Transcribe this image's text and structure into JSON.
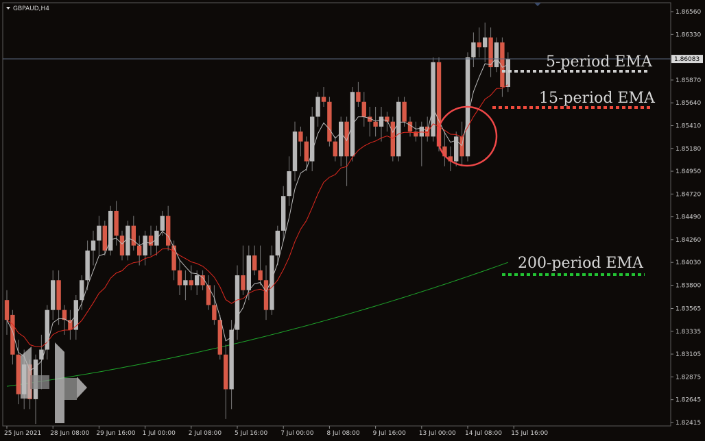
{
  "symbol": "GBPAUD,H4",
  "chart_data": {
    "type": "candlestick",
    "title": "GBPAUD,H4",
    "ylim": [
      1.8238,
      1.8665
    ],
    "y_ticks": [
      "1.86560",
      "1.86330",
      "1.85870",
      "1.85640",
      "1.85410",
      "1.85180",
      "1.84950",
      "1.84720",
      "1.84490",
      "1.84260",
      "1.84030",
      "1.83800",
      "1.83565",
      "1.83335",
      "1.83105",
      "1.82875",
      "1.82645",
      "1.82415"
    ],
    "y_tick_values": [
      1.8656,
      1.8633,
      1.8587,
      1.8564,
      1.8541,
      1.8518,
      1.8495,
      1.8472,
      1.8449,
      1.8426,
      1.8403,
      1.838,
      1.83565,
      1.83335,
      1.83105,
      1.82875,
      1.82645,
      1.82415
    ],
    "x_ticks": [
      "25 Jun 2021",
      "28 Jun 08:00",
      "29 Jun 16:00",
      "1 Jul 00:00",
      "2 Jul 08:00",
      "5 Jul 16:00",
      "7 Jul 00:00",
      "8 Jul 08:00",
      "9 Jul 16:00",
      "13 Jul 00:00",
      "14 Jul 08:00",
      "15 Jul 16:00"
    ],
    "x_tick_index": [
      0,
      8,
      16,
      24,
      32,
      40,
      48,
      56,
      64,
      72,
      80,
      88
    ],
    "current_price": "1.86083",
    "current_price_value": 1.86083,
    "ohlc": [
      [
        1.8365,
        1.8375,
        1.833,
        1.8345
      ],
      [
        1.835,
        1.8355,
        1.83,
        1.831
      ],
      [
        1.831,
        1.8325,
        1.826,
        1.827
      ],
      [
        1.827,
        1.8315,
        1.8255,
        1.83
      ],
      [
        1.83,
        1.8305,
        1.8255,
        1.8265
      ],
      [
        1.8265,
        1.831,
        1.824,
        1.8305
      ],
      [
        1.8305,
        1.833,
        1.8275,
        1.8315
      ],
      [
        1.8315,
        1.836,
        1.8305,
        1.8355
      ],
      [
        1.8355,
        1.8395,
        1.8345,
        1.8385
      ],
      [
        1.8385,
        1.8395,
        1.834,
        1.8355
      ],
      [
        1.8355,
        1.836,
        1.833,
        1.8345
      ],
      [
        1.8345,
        1.8355,
        1.8325,
        1.8335
      ],
      [
        1.8335,
        1.837,
        1.8325,
        1.8365
      ],
      [
        1.8365,
        1.839,
        1.8355,
        1.8385
      ],
      [
        1.8385,
        1.8425,
        1.8375,
        1.8415
      ],
      [
        1.8415,
        1.8435,
        1.84,
        1.8425
      ],
      [
        1.8425,
        1.845,
        1.841,
        1.844
      ],
      [
        1.844,
        1.8445,
        1.841,
        1.8415
      ],
      [
        1.8415,
        1.846,
        1.841,
        1.8455
      ],
      [
        1.8455,
        1.8465,
        1.842,
        1.843
      ],
      [
        1.843,
        1.8435,
        1.8405,
        1.841
      ],
      [
        1.841,
        1.8445,
        1.8405,
        1.844
      ],
      [
        1.844,
        1.845,
        1.8415,
        1.842
      ],
      [
        1.842,
        1.843,
        1.84,
        1.841
      ],
      [
        1.841,
        1.8435,
        1.84,
        1.843
      ],
      [
        1.843,
        1.844,
        1.841,
        1.842
      ],
      [
        1.842,
        1.844,
        1.841,
        1.8435
      ],
      [
        1.8435,
        1.8455,
        1.843,
        1.845
      ],
      [
        1.845,
        1.846,
        1.8415,
        1.842
      ],
      [
        1.842,
        1.8425,
        1.8385,
        1.8395
      ],
      [
        1.8395,
        1.8405,
        1.837,
        1.838
      ],
      [
        1.838,
        1.8395,
        1.8365,
        1.8385
      ],
      [
        1.8385,
        1.84,
        1.8375,
        1.838
      ],
      [
        1.838,
        1.8395,
        1.837,
        1.839
      ],
      [
        1.839,
        1.8395,
        1.8375,
        1.838
      ],
      [
        1.838,
        1.839,
        1.8355,
        1.836
      ],
      [
        1.836,
        1.838,
        1.834,
        1.8345
      ],
      [
        1.8345,
        1.835,
        1.8305,
        1.831
      ],
      [
        1.831,
        1.832,
        1.8245,
        1.8275
      ],
      [
        1.8275,
        1.8345,
        1.8255,
        1.8335
      ],
      [
        1.8335,
        1.84,
        1.8325,
        1.839
      ],
      [
        1.839,
        1.842,
        1.837,
        1.8375
      ],
      [
        1.8375,
        1.842,
        1.8365,
        1.841
      ],
      [
        1.841,
        1.842,
        1.839,
        1.8395
      ],
      [
        1.8395,
        1.842,
        1.838,
        1.8385
      ],
      [
        1.8385,
        1.84,
        1.8345,
        1.8355
      ],
      [
        1.8355,
        1.842,
        1.835,
        1.841
      ],
      [
        1.841,
        1.844,
        1.84,
        1.8435
      ],
      [
        1.8435,
        1.848,
        1.8425,
        1.847
      ],
      [
        1.847,
        1.851,
        1.846,
        1.8495
      ],
      [
        1.8495,
        1.8545,
        1.8485,
        1.8535
      ],
      [
        1.8535,
        1.854,
        1.851,
        1.8525
      ],
      [
        1.8525,
        1.853,
        1.8495,
        1.8505
      ],
      [
        1.8505,
        1.856,
        1.8495,
        1.855
      ],
      [
        1.855,
        1.8575,
        1.854,
        1.857
      ],
      [
        1.857,
        1.858,
        1.856,
        1.8565
      ],
      [
        1.8565,
        1.857,
        1.852,
        1.8525
      ],
      [
        1.8525,
        1.853,
        1.8505,
        1.851
      ],
      [
        1.851,
        1.855,
        1.85,
        1.8545
      ],
      [
        1.8545,
        1.855,
        1.848,
        1.851
      ],
      [
        1.851,
        1.858,
        1.8505,
        1.8575
      ],
      [
        1.8575,
        1.8585,
        1.856,
        1.8565
      ],
      [
        1.8565,
        1.8575,
        1.854,
        1.855
      ],
      [
        1.855,
        1.856,
        1.853,
        1.8545
      ],
      [
        1.8545,
        1.856,
        1.853,
        1.854
      ],
      [
        1.854,
        1.856,
        1.8525,
        1.855
      ],
      [
        1.855,
        1.8555,
        1.8535,
        1.8545
      ],
      [
        1.8545,
        1.855,
        1.8505,
        1.851
      ],
      [
        1.851,
        1.857,
        1.8505,
        1.8565
      ],
      [
        1.8565,
        1.857,
        1.854,
        1.8545
      ],
      [
        1.8545,
        1.855,
        1.853,
        1.8535
      ],
      [
        1.8535,
        1.8545,
        1.8525,
        1.853
      ],
      [
        1.853,
        1.8545,
        1.85,
        1.854
      ],
      [
        1.854,
        1.855,
        1.8525,
        1.853
      ],
      [
        1.853,
        1.861,
        1.8525,
        1.8605
      ],
      [
        1.8605,
        1.861,
        1.8515,
        1.852
      ],
      [
        1.852,
        1.8535,
        1.85,
        1.851
      ],
      [
        1.851,
        1.852,
        1.8495,
        1.8505
      ],
      [
        1.8505,
        1.8535,
        1.85,
        1.853
      ],
      [
        1.853,
        1.8545,
        1.85,
        1.851
      ],
      [
        1.851,
        1.8615,
        1.8505,
        1.861
      ],
      [
        1.861,
        1.8635,
        1.86,
        1.8625
      ],
      [
        1.8625,
        1.864,
        1.861,
        1.862
      ],
      [
        1.862,
        1.8645,
        1.8605,
        1.863
      ],
      [
        1.863,
        1.864,
        1.859,
        1.86
      ],
      [
        1.86,
        1.863,
        1.8595,
        1.8625
      ],
      [
        1.8625,
        1.863,
        1.857,
        1.858
      ],
      [
        1.858,
        1.8615,
        1.8575,
        1.8608
      ]
    ],
    "ema": [
      {
        "label": "5-period EMA",
        "color": "#ffffff",
        "line_color": "#bdbdbd"
      },
      {
        "label": "15-period EMA",
        "color": "#f05545",
        "line_color": "#e0291f"
      },
      {
        "label": "200-period EMA",
        "color": "#22c433",
        "line_color": "#1ea62b",
        "values_start": 1.8278,
        "values_end": 1.8403
      }
    ],
    "up_color": "#b8b8b8",
    "down_color": "#d85a48",
    "grid": false,
    "highlight": "circle around 14 Jul 08:00 pullback to the 5-period EMA"
  }
}
